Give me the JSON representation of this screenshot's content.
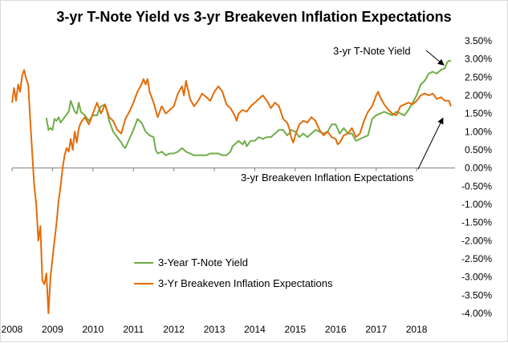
{
  "chart_data": {
    "type": "line",
    "title": "3-yr T-Note Yield vs 3-yr Breakeven Inflation Expectations",
    "xlabel": "",
    "ylabel": "",
    "x_ticks": [
      "2008",
      "2009",
      "2010",
      "2011",
      "2012",
      "2013",
      "2014",
      "2015",
      "2016",
      "2017",
      "2018"
    ],
    "x_range": [
      2008.0,
      2018.95
    ],
    "y_ticks": [
      "3.50%",
      "3.00%",
      "2.50%",
      "2.00%",
      "1.50%",
      "1.00%",
      "0.50%",
      "0.00%",
      "-0.50%",
      "-1.00%",
      "-1.50%",
      "-2.00%",
      "-2.50%",
      "-3.00%",
      "-3.50%",
      "-4.00%"
    ],
    "ylim": [
      -4.0,
      3.5
    ],
    "grid": false,
    "legend_position": "bottom-left",
    "annotations": [
      {
        "text": "3-yr T-Note Yield",
        "points_to": [
          2018.75,
          2.88
        ]
      },
      {
        "text": "3-yr Breakeven Inflation Expectations",
        "points_to": [
          2018.65,
          1.55
        ]
      }
    ],
    "series": [
      {
        "name": "3-Year T-Note Yield",
        "color": "#70ad47",
        "points": [
          [
            2008.85,
            1.38
          ],
          [
            2008.9,
            1.05
          ],
          [
            2008.95,
            1.1
          ],
          [
            2009.0,
            1.05
          ],
          [
            2009.05,
            1.35
          ],
          [
            2009.1,
            1.3
          ],
          [
            2009.15,
            1.4
          ],
          [
            2009.2,
            1.25
          ],
          [
            2009.3,
            1.4
          ],
          [
            2009.4,
            1.55
          ],
          [
            2009.45,
            1.85
          ],
          [
            2009.5,
            1.7
          ],
          [
            2009.55,
            1.55
          ],
          [
            2009.6,
            1.5
          ],
          [
            2009.65,
            1.8
          ],
          [
            2009.7,
            1.55
          ],
          [
            2009.8,
            1.45
          ],
          [
            2009.9,
            1.3
          ],
          [
            2010.0,
            1.45
          ],
          [
            2010.1,
            1.45
          ],
          [
            2010.15,
            1.6
          ],
          [
            2010.2,
            1.7
          ],
          [
            2010.3,
            1.75
          ],
          [
            2010.35,
            1.55
          ],
          [
            2010.4,
            1.3
          ],
          [
            2010.5,
            1.0
          ],
          [
            2010.6,
            0.85
          ],
          [
            2010.7,
            0.7
          ],
          [
            2010.75,
            0.6
          ],
          [
            2010.8,
            0.55
          ],
          [
            2010.9,
            0.8
          ],
          [
            2011.0,
            1.05
          ],
          [
            2011.05,
            1.2
          ],
          [
            2011.1,
            1.35
          ],
          [
            2011.2,
            1.25
          ],
          [
            2011.3,
            1.0
          ],
          [
            2011.4,
            0.9
          ],
          [
            2011.5,
            0.85
          ],
          [
            2011.55,
            0.5
          ],
          [
            2011.6,
            0.4
          ],
          [
            2011.7,
            0.45
          ],
          [
            2011.8,
            0.35
          ],
          [
            2011.9,
            0.4
          ],
          [
            2012.0,
            0.4
          ],
          [
            2012.1,
            0.45
          ],
          [
            2012.2,
            0.55
          ],
          [
            2012.3,
            0.45
          ],
          [
            2012.4,
            0.4
          ],
          [
            2012.5,
            0.35
          ],
          [
            2012.6,
            0.35
          ],
          [
            2012.7,
            0.35
          ],
          [
            2012.8,
            0.35
          ],
          [
            2012.9,
            0.4
          ],
          [
            2013.0,
            0.4
          ],
          [
            2013.1,
            0.4
          ],
          [
            2013.2,
            0.35
          ],
          [
            2013.3,
            0.35
          ],
          [
            2013.4,
            0.45
          ],
          [
            2013.45,
            0.6
          ],
          [
            2013.5,
            0.65
          ],
          [
            2013.6,
            0.75
          ],
          [
            2013.7,
            0.65
          ],
          [
            2013.75,
            0.75
          ],
          [
            2013.8,
            0.6
          ],
          [
            2013.9,
            0.75
          ],
          [
            2014.0,
            0.75
          ],
          [
            2014.1,
            0.85
          ],
          [
            2014.2,
            0.8
          ],
          [
            2014.3,
            0.85
          ],
          [
            2014.4,
            0.85
          ],
          [
            2014.5,
            0.95
          ],
          [
            2014.6,
            1.05
          ],
          [
            2014.7,
            1.05
          ],
          [
            2014.8,
            0.9
          ],
          [
            2014.85,
            0.95
          ],
          [
            2014.9,
            1.05
          ],
          [
            2015.0,
            1.0
          ],
          [
            2015.1,
            0.85
          ],
          [
            2015.2,
            0.95
          ],
          [
            2015.3,
            0.85
          ],
          [
            2015.4,
            0.95
          ],
          [
            2015.5,
            1.05
          ],
          [
            2015.6,
            1.0
          ],
          [
            2015.7,
            0.95
          ],
          [
            2015.8,
            1.0
          ],
          [
            2015.9,
            1.2
          ],
          [
            2016.0,
            1.2
          ],
          [
            2016.1,
            0.95
          ],
          [
            2016.2,
            1.1
          ],
          [
            2016.3,
            0.95
          ],
          [
            2016.4,
            0.95
          ],
          [
            2016.5,
            0.75
          ],
          [
            2016.6,
            0.8
          ],
          [
            2016.7,
            0.85
          ],
          [
            2016.8,
            0.9
          ],
          [
            2016.9,
            1.35
          ],
          [
            2017.0,
            1.45
          ],
          [
            2017.1,
            1.5
          ],
          [
            2017.2,
            1.55
          ],
          [
            2017.3,
            1.5
          ],
          [
            2017.4,
            1.45
          ],
          [
            2017.5,
            1.55
          ],
          [
            2017.6,
            1.5
          ],
          [
            2017.7,
            1.45
          ],
          [
            2017.8,
            1.6
          ],
          [
            2017.9,
            1.8
          ],
          [
            2018.0,
            2.0
          ],
          [
            2018.1,
            2.3
          ],
          [
            2018.2,
            2.4
          ],
          [
            2018.3,
            2.6
          ],
          [
            2018.4,
            2.65
          ],
          [
            2018.5,
            2.6
          ],
          [
            2018.6,
            2.7
          ],
          [
            2018.7,
            2.75
          ],
          [
            2018.75,
            2.9
          ],
          [
            2018.8,
            2.95
          ],
          [
            2018.85,
            2.95
          ]
        ]
      },
      {
        "name": "3-Yr Breakeven Inflation Expectations",
        "color": "#e36c09",
        "points": [
          [
            2008.0,
            1.8
          ],
          [
            2008.05,
            2.2
          ],
          [
            2008.1,
            1.85
          ],
          [
            2008.15,
            2.3
          ],
          [
            2008.2,
            2.1
          ],
          [
            2008.25,
            2.55
          ],
          [
            2008.3,
            2.7
          ],
          [
            2008.35,
            2.45
          ],
          [
            2008.4,
            2.3
          ],
          [
            2008.45,
            1.3
          ],
          [
            2008.5,
            0.4
          ],
          [
            2008.55,
            -0.5
          ],
          [
            2008.6,
            -1.0
          ],
          [
            2008.65,
            -2.0
          ],
          [
            2008.7,
            -1.6
          ],
          [
            2008.75,
            -3.1
          ],
          [
            2008.8,
            -3.2
          ],
          [
            2008.85,
            -2.9
          ],
          [
            2008.9,
            -4.0
          ],
          [
            2008.95,
            -3.0
          ],
          [
            2009.0,
            -2.5
          ],
          [
            2009.05,
            -2.0
          ],
          [
            2009.1,
            -1.5
          ],
          [
            2009.15,
            -0.9
          ],
          [
            2009.2,
            -0.5
          ],
          [
            2009.25,
            0.0
          ],
          [
            2009.3,
            0.35
          ],
          [
            2009.35,
            0.55
          ],
          [
            2009.4,
            0.45
          ],
          [
            2009.45,
            0.8
          ],
          [
            2009.5,
            0.5
          ],
          [
            2009.55,
            1.0
          ],
          [
            2009.6,
            0.7
          ],
          [
            2009.65,
            1.1
          ],
          [
            2009.7,
            1.25
          ],
          [
            2009.8,
            1.4
          ],
          [
            2009.9,
            1.2
          ],
          [
            2010.0,
            1.5
          ],
          [
            2010.1,
            1.8
          ],
          [
            2010.2,
            1.5
          ],
          [
            2010.3,
            1.75
          ],
          [
            2010.4,
            1.4
          ],
          [
            2010.5,
            1.3
          ],
          [
            2010.6,
            1.05
          ],
          [
            2010.7,
            0.95
          ],
          [
            2010.8,
            1.35
          ],
          [
            2010.9,
            1.55
          ],
          [
            2011.0,
            1.8
          ],
          [
            2011.1,
            2.1
          ],
          [
            2011.2,
            2.3
          ],
          [
            2011.25,
            2.45
          ],
          [
            2011.3,
            2.3
          ],
          [
            2011.35,
            2.45
          ],
          [
            2011.4,
            2.1
          ],
          [
            2011.5,
            1.8
          ],
          [
            2011.6,
            1.4
          ],
          [
            2011.7,
            1.7
          ],
          [
            2011.8,
            1.5
          ],
          [
            2011.9,
            1.6
          ],
          [
            2012.0,
            1.7
          ],
          [
            2012.1,
            2.05
          ],
          [
            2012.2,
            2.25
          ],
          [
            2012.25,
            2.0
          ],
          [
            2012.3,
            2.4
          ],
          [
            2012.4,
            1.9
          ],
          [
            2012.5,
            1.7
          ],
          [
            2012.6,
            1.85
          ],
          [
            2012.7,
            2.05
          ],
          [
            2012.8,
            1.95
          ],
          [
            2012.9,
            1.85
          ],
          [
            2013.0,
            2.1
          ],
          [
            2013.1,
            2.25
          ],
          [
            2013.2,
            2.1
          ],
          [
            2013.3,
            1.75
          ],
          [
            2013.4,
            1.65
          ],
          [
            2013.5,
            1.45
          ],
          [
            2013.55,
            1.3
          ],
          [
            2013.6,
            1.5
          ],
          [
            2013.7,
            1.6
          ],
          [
            2013.8,
            1.55
          ],
          [
            2013.9,
            1.7
          ],
          [
            2014.0,
            1.8
          ],
          [
            2014.1,
            1.9
          ],
          [
            2014.2,
            2.0
          ],
          [
            2014.3,
            1.85
          ],
          [
            2014.4,
            1.65
          ],
          [
            2014.5,
            1.8
          ],
          [
            2014.6,
            1.7
          ],
          [
            2014.7,
            1.35
          ],
          [
            2014.8,
            1.25
          ],
          [
            2014.85,
            1.1
          ],
          [
            2014.9,
            0.85
          ],
          [
            2014.95,
            0.7
          ],
          [
            2015.0,
            0.9
          ],
          [
            2015.1,
            1.2
          ],
          [
            2015.2,
            1.3
          ],
          [
            2015.3,
            1.25
          ],
          [
            2015.4,
            1.4
          ],
          [
            2015.5,
            1.3
          ],
          [
            2015.6,
            1.05
          ],
          [
            2015.7,
            0.9
          ],
          [
            2015.8,
            1.0
          ],
          [
            2015.9,
            0.85
          ],
          [
            2016.0,
            0.8
          ],
          [
            2016.05,
            0.65
          ],
          [
            2016.1,
            0.7
          ],
          [
            2016.2,
            0.9
          ],
          [
            2016.3,
            0.95
          ],
          [
            2016.4,
            1.1
          ],
          [
            2016.5,
            0.85
          ],
          [
            2016.6,
            0.95
          ],
          [
            2016.7,
            1.3
          ],
          [
            2016.8,
            1.55
          ],
          [
            2016.9,
            1.7
          ],
          [
            2017.0,
            2.0
          ],
          [
            2017.05,
            2.1
          ],
          [
            2017.1,
            1.95
          ],
          [
            2017.2,
            1.75
          ],
          [
            2017.3,
            1.6
          ],
          [
            2017.4,
            1.5
          ],
          [
            2017.5,
            1.45
          ],
          [
            2017.6,
            1.7
          ],
          [
            2017.7,
            1.75
          ],
          [
            2017.8,
            1.8
          ],
          [
            2017.9,
            1.75
          ],
          [
            2018.0,
            1.85
          ],
          [
            2018.1,
            2.0
          ],
          [
            2018.2,
            2.05
          ],
          [
            2018.3,
            2.0
          ],
          [
            2018.4,
            2.05
          ],
          [
            2018.5,
            1.9
          ],
          [
            2018.6,
            1.95
          ],
          [
            2018.7,
            1.85
          ],
          [
            2018.8,
            1.85
          ],
          [
            2018.85,
            1.7
          ]
        ]
      }
    ]
  }
}
